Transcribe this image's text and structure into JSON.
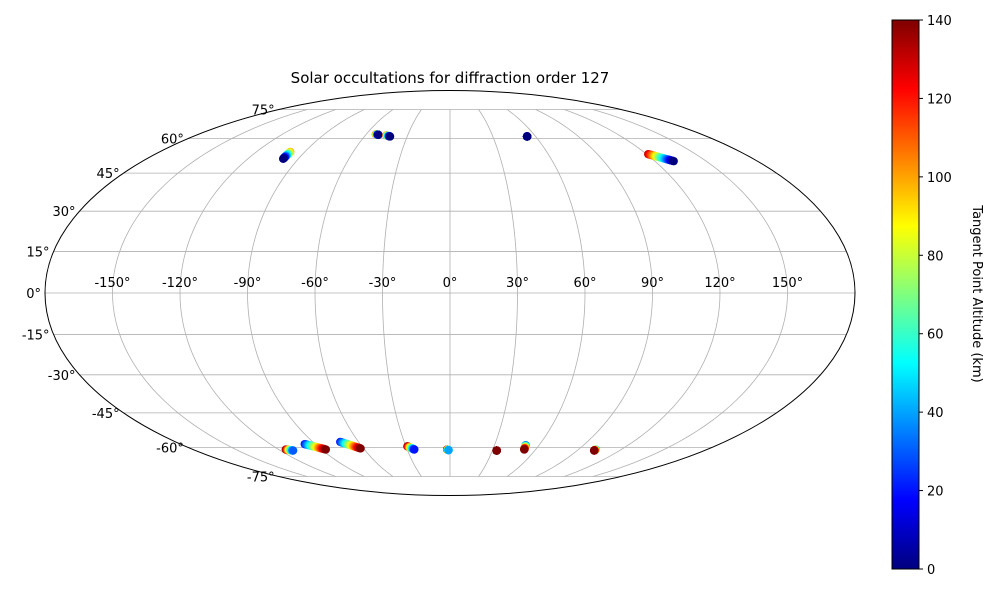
{
  "chart_data": {
    "type": "scatter",
    "projection": "mollweide",
    "title": "Solar occultations for diffraction order 127",
    "lon_ticks": [
      "-150°",
      "-120°",
      "-90°",
      "-60°",
      "-30°",
      "0°",
      "30°",
      "60°",
      "90°",
      "120°",
      "150°"
    ],
    "lat_ticks": [
      "75°",
      "60°",
      "45°",
      "30°",
      "15°",
      "0°",
      "-15°",
      "-30°",
      "-45°",
      "-60°",
      "-75°"
    ],
    "lon_tick_values": [
      -150,
      -120,
      -90,
      -60,
      -30,
      0,
      30,
      60,
      90,
      120,
      150
    ],
    "lat_tick_values": [
      75,
      60,
      45,
      30,
      15,
      0,
      -15,
      -30,
      -45,
      -60,
      -75
    ],
    "grid": true,
    "colorbar": {
      "label": "Tangent Point Altitude (km)",
      "range": [
        0,
        140
      ],
      "ticks": [
        "0",
        "20",
        "40",
        "60",
        "80",
        "100",
        "120",
        "140"
      ],
      "tick_values": [
        0,
        20,
        40,
        60,
        80,
        100,
        120,
        140
      ],
      "colormap": "jet",
      "colors": [
        "#00007f",
        "#0000ff",
        "#007fff",
        "#00ffff",
        "#7fff7f",
        "#ffff00",
        "#ff7f00",
        "#ff0000",
        "#7f0000"
      ],
      "placement": "right"
    },
    "tracks": [
      {
        "lon_start": -99,
        "lat_start": 54,
        "lon_end": -99,
        "lat_end": 51,
        "alt_start": 100,
        "alt_end": 0
      },
      {
        "lon_start": -53,
        "lat_start": 62,
        "lon_end": -51,
        "lat_end": 61.8,
        "alt_start": 110,
        "alt_end": 0
      },
      {
        "lon_start": -45,
        "lat_start": 61.5,
        "lon_end": -42,
        "lat_end": 61,
        "alt_start": 110,
        "alt_end": 0
      },
      {
        "lon_start": 54,
        "lat_start": 61,
        "lon_end": 54,
        "lat_end": 61,
        "alt_start": 10,
        "alt_end": 0
      },
      {
        "lon_start": 121,
        "lat_start": 53,
        "lon_end": 131,
        "lat_end": 50,
        "alt_start": 130,
        "alt_end": 0
      },
      {
        "lon_start": -115,
        "lat_start": -61,
        "lon_end": -111,
        "lat_end": -61.5,
        "alt_start": 140,
        "alt_end": 30
      },
      {
        "lon_start": -97,
        "lat_start": -58.5,
        "lon_end": -87,
        "lat_end": -61,
        "alt_start": 20,
        "alt_end": 140
      },
      {
        "lon_start": -72,
        "lat_start": -57.5,
        "lon_end": -62,
        "lat_end": -60.5,
        "alt_start": 20,
        "alt_end": 140
      },
      {
        "lon_start": -29,
        "lat_start": -59.5,
        "lon_end": -25,
        "lat_end": -61,
        "alt_start": 140,
        "alt_end": 20
      },
      {
        "lon_start": -2,
        "lat_start": -61,
        "lon_end": -1,
        "lat_end": -61.3,
        "alt_start": 140,
        "alt_end": 40
      },
      {
        "lon_start": 33,
        "lat_start": -61.5,
        "lon_end": 33,
        "lat_end": -61.5,
        "alt_start": 140,
        "alt_end": 140
      },
      {
        "lon_start": 51,
        "lat_start": -59,
        "lon_end": 52,
        "lat_end": -61,
        "alt_start": 30,
        "alt_end": 140
      },
      {
        "lon_start": 102,
        "lat_start": -61,
        "lon_end": 102,
        "lat_end": -61.5,
        "alt_start": 40,
        "alt_end": 140
      }
    ]
  }
}
